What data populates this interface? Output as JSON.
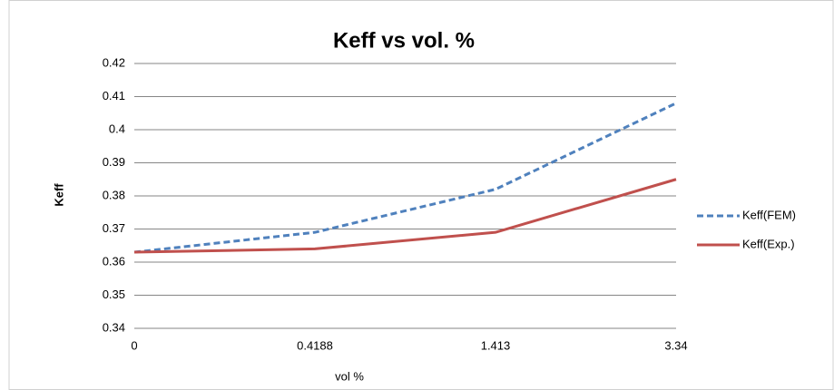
{
  "chart_data": {
    "type": "line",
    "title": "Keff vs vol. %",
    "x_label": "vol %",
    "y_label": "Keff",
    "categories": [
      "0",
      "0.4188",
      "1.413",
      "3.34"
    ],
    "series": [
      {
        "name": "Keff(FEM)",
        "color": "#4f81bd",
        "dashed": true,
        "values": [
          0.363,
          0.369,
          0.382,
          0.408
        ]
      },
      {
        "name": "Keff(Exp.)",
        "color": "#c0504d",
        "dashed": false,
        "values": [
          0.363,
          0.364,
          0.369,
          0.385
        ]
      }
    ],
    "ylim": [
      0.34,
      0.42
    ],
    "yticks": [
      0.34,
      0.35,
      0.36,
      0.37,
      0.38,
      0.39,
      0.4,
      0.41,
      0.42
    ],
    "grid": true,
    "legend": "right"
  }
}
